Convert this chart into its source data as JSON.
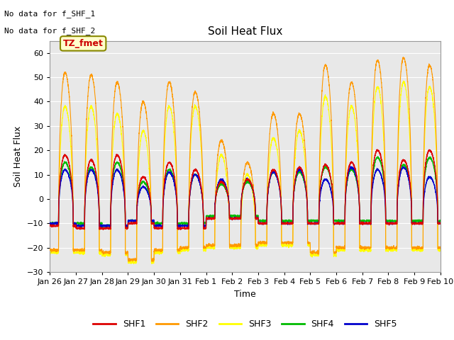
{
  "title": "Soil Heat Flux",
  "ylabel": "Soil Heat Flux",
  "xlabel": "Time",
  "ylim": [
    -30,
    65
  ],
  "yticks": [
    -30,
    -20,
    -10,
    0,
    10,
    20,
    30,
    40,
    50,
    60
  ],
  "fig_bg_color": "#ffffff",
  "plot_bg_color": "#e8e8e8",
  "no_data_text1": "No data for f_SHF_1",
  "no_data_text2": "No data for f_SHF_2",
  "tz_label": "TZ_fmet",
  "series_colors": {
    "SHF1": "#dd0000",
    "SHF2": "#ff9900",
    "SHF3": "#ffff00",
    "SHF4": "#00bb00",
    "SHF5": "#0000cc"
  },
  "x_tick_labels": [
    "Jan 26",
    "Jan 27",
    "Jan 28",
    "Jan 29",
    "Jan 30",
    "Jan 31",
    "Feb 1",
    "Feb 2",
    "Feb 3",
    "Feb 4",
    "Feb 5",
    "Feb 6",
    "Feb 7",
    "Feb 8",
    "Feb 9",
    "Feb 10"
  ],
  "n_days": 15,
  "points_per_day": 288
}
